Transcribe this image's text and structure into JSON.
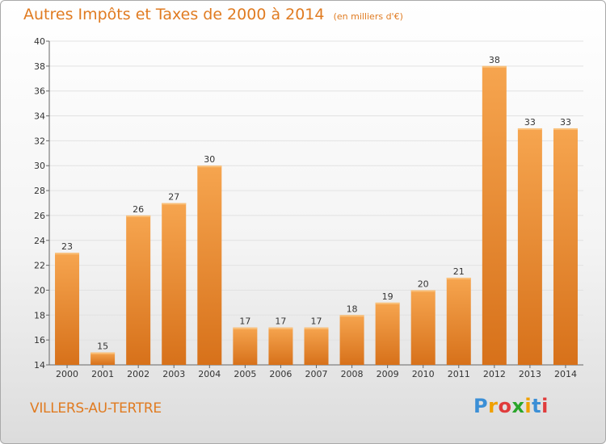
{
  "chart_data": {
    "type": "bar",
    "title": "Autres Impôts et Taxes de 2000 à 2014",
    "unit": "(en milliers d'€)",
    "categories": [
      "2000",
      "2001",
      "2002",
      "2003",
      "2004",
      "2005",
      "2006",
      "2007",
      "2008",
      "2009",
      "2010",
      "2011",
      "2012",
      "2013",
      "2014"
    ],
    "values": [
      23,
      15,
      26,
      27,
      30,
      17,
      17,
      17,
      18,
      19,
      20,
      21,
      38,
      33,
      33
    ],
    "ylim": [
      14,
      40
    ],
    "yticks": [
      14,
      16,
      18,
      20,
      22,
      24,
      26,
      28,
      30,
      32,
      34,
      36,
      38,
      40
    ],
    "grid": true,
    "bar_color": "#ef8b2c"
  },
  "commune": "VILLERS-AU-TERTRE",
  "logo": {
    "text": "Proxiti",
    "letters": [
      "P",
      "r",
      "o",
      "x",
      "i",
      "t",
      "i"
    ],
    "colors": [
      "#3b8fd6",
      "#f0a000",
      "#e03c3c",
      "#2aa52a",
      "#f0a000",
      "#3b8fd6",
      "#e03c3c"
    ]
  }
}
